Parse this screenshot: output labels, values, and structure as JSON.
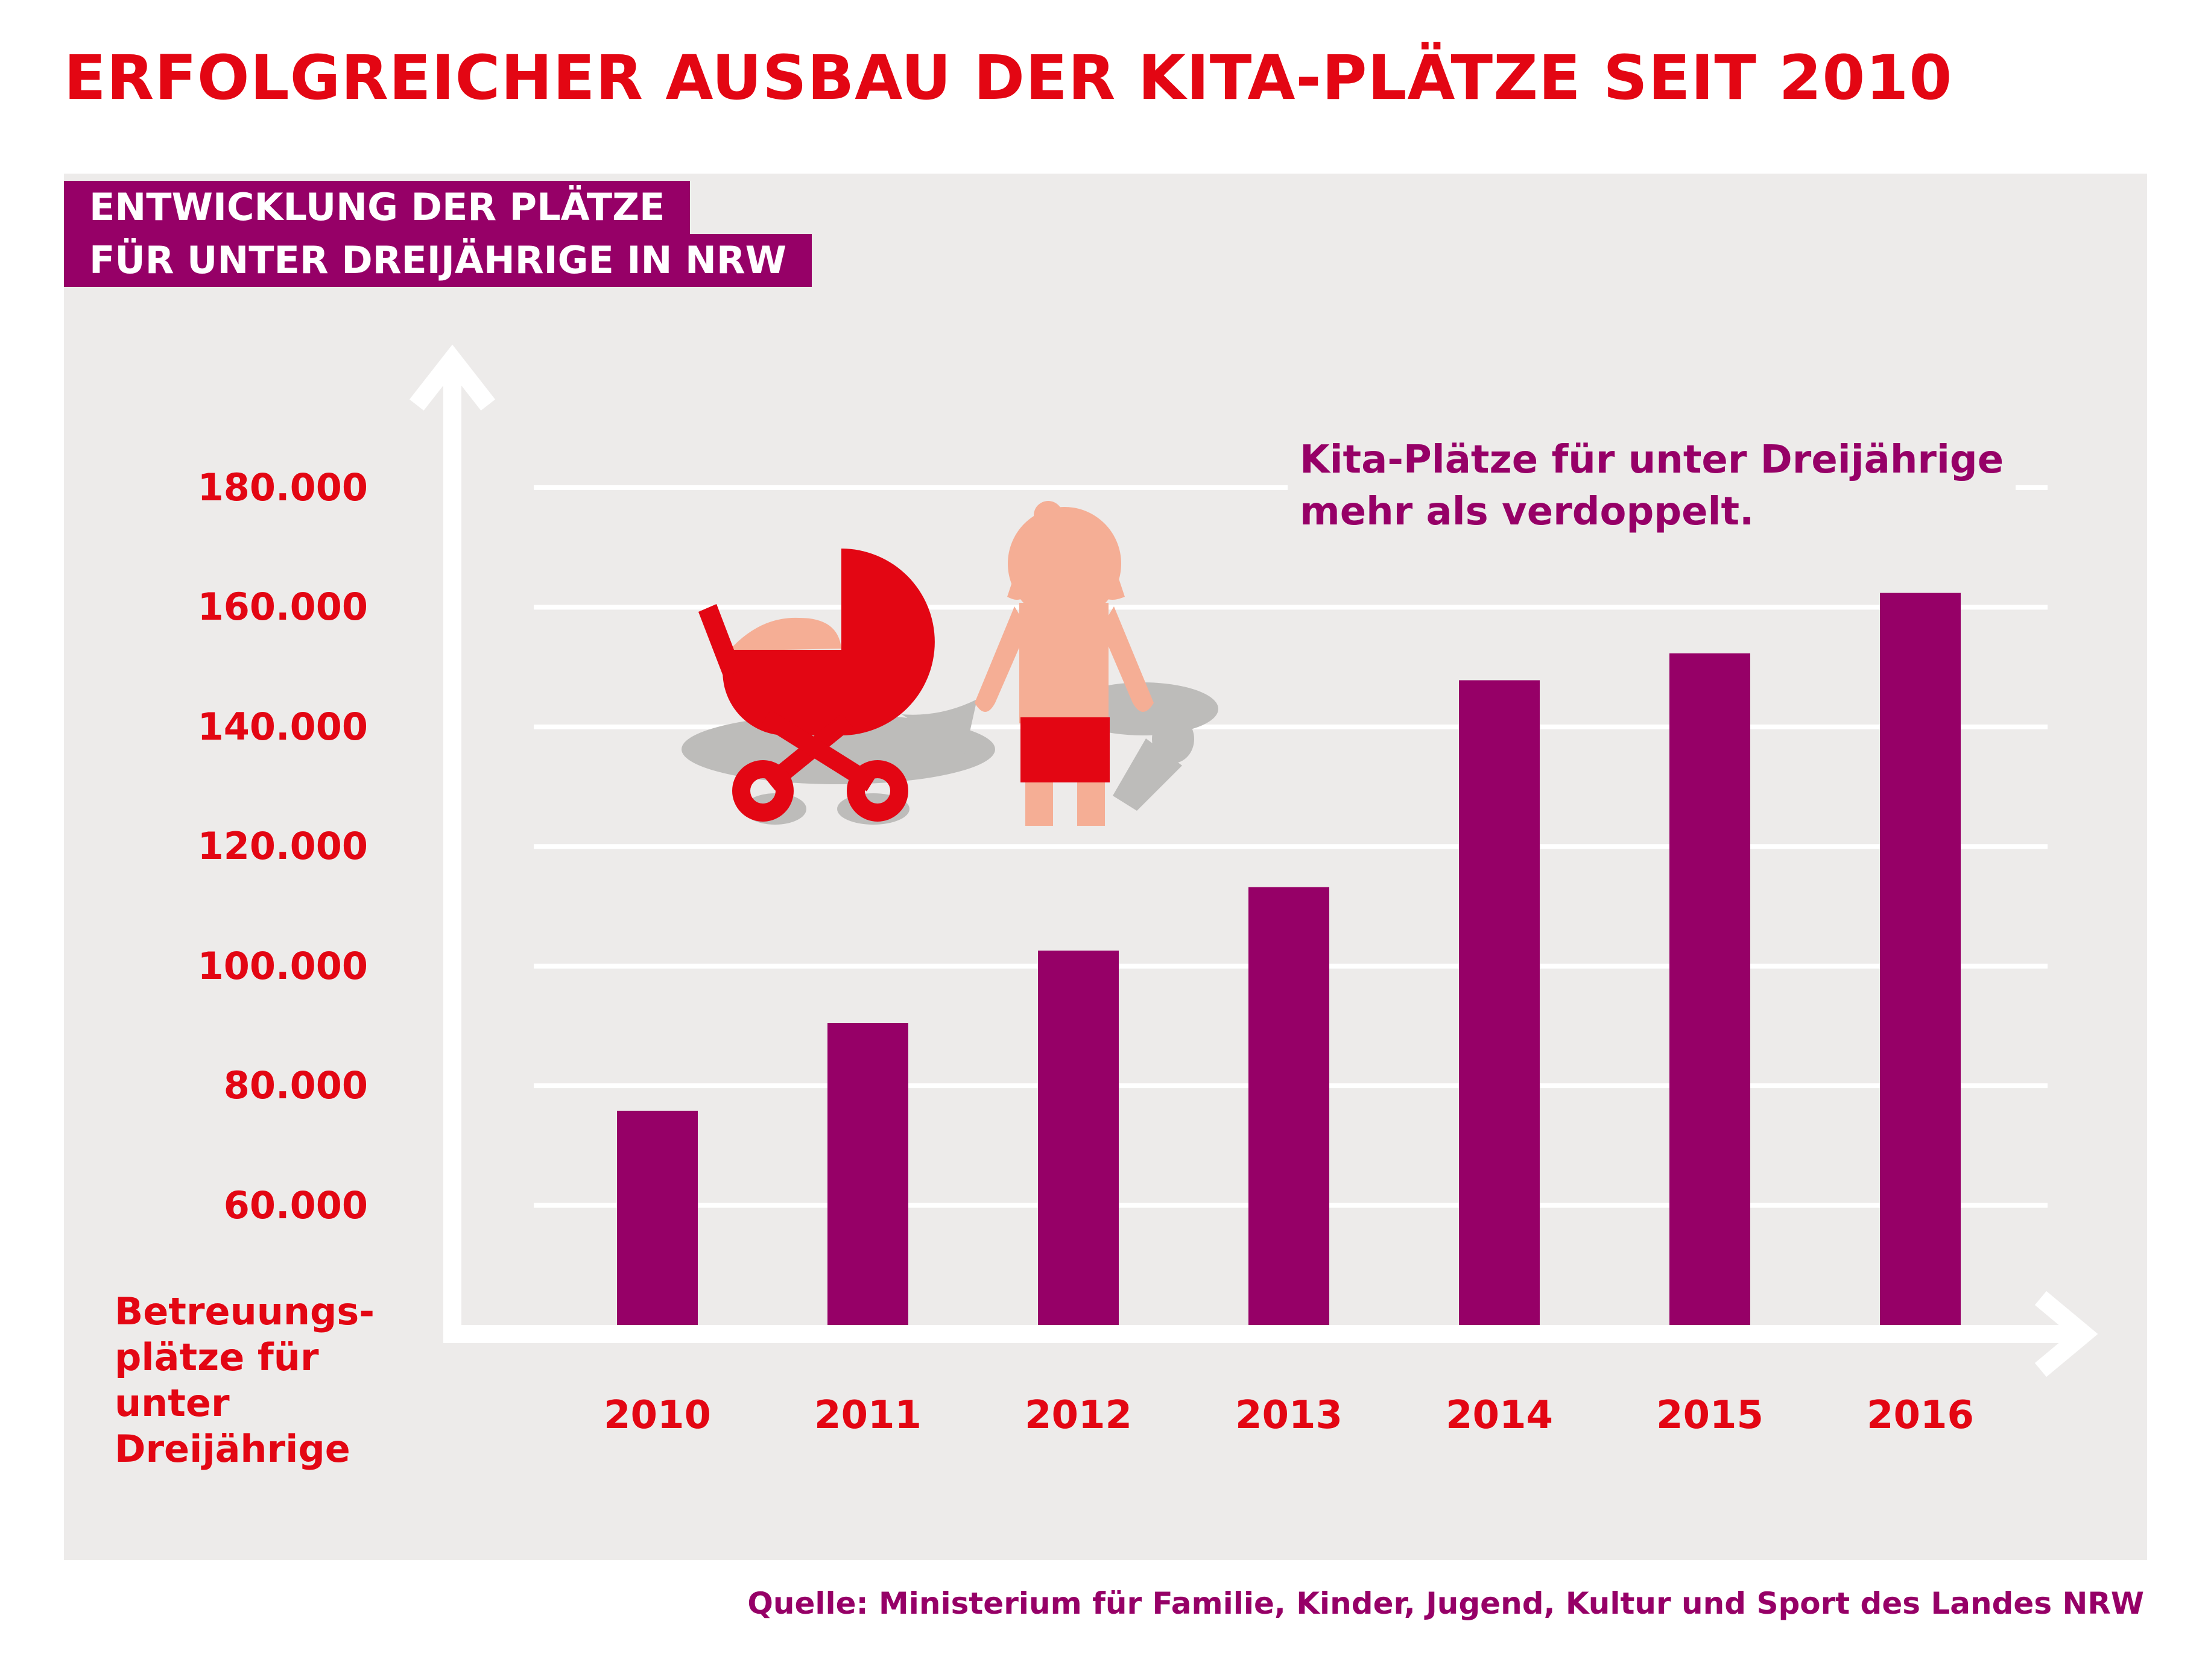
{
  "title": "ERFOLGREICHER AUSBAU DER KITA-PLÄTZE SEIT 2010",
  "subtitle": [
    "ENTWICKLUNG DER PLÄTZE",
    "FÜR UNTER DREIJÄHRIGE IN NRW"
  ],
  "annotation": "Kita-Plätze für unter Dreijährige\nmehr als verdoppelt.",
  "source": "Quelle: Ministerium für Familie, Kinder, Jugend, Kultur und Sport des Landes NRW",
  "colors": {
    "title": "#e30613",
    "bar": "#960067",
    "panel": "#edebea",
    "subtitle_bg": "#960067",
    "stroller": "#e30613",
    "skin": "#f5ae95",
    "shadow": "#bdbcba"
  },
  "icons": [
    "stroller-icon",
    "toddler-icon"
  ],
  "chart_data": {
    "type": "bar",
    "categories": [
      "2010",
      "2011",
      "2012",
      "2013",
      "2014",
      "2015",
      "2016"
    ],
    "values": [
      75800,
      90500,
      102600,
      113200,
      147800,
      152300,
      162400
    ],
    "ylabel": "Betreuungs-\nplätze für\nunter Dreijährige",
    "xlabel": "",
    "yticks": [
      "60.000",
      "80.000",
      "100.000",
      "120.000",
      "140.000",
      "160.000",
      "180.000"
    ],
    "ylim": [
      40000,
      180000
    ],
    "grid": true,
    "legend": "none"
  }
}
